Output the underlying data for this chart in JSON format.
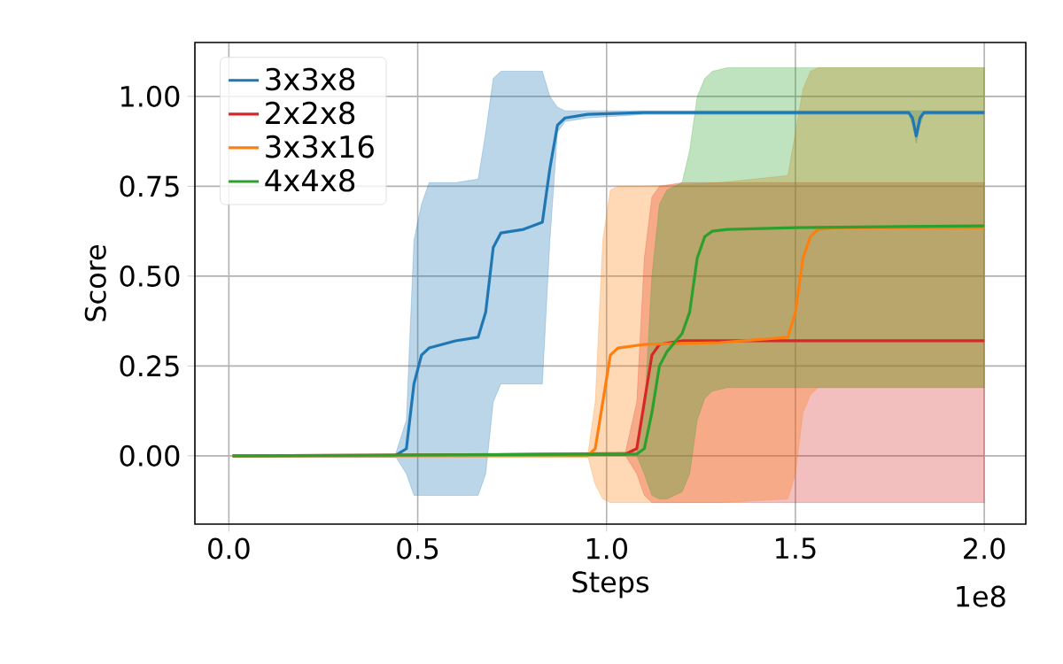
{
  "chart_data": {
    "type": "line",
    "xlabel": "Steps",
    "ylabel": "Score",
    "annotations": [
      "1e8"
    ],
    "xlim": [
      -0.09,
      2.11
    ],
    "ylim": [
      -0.19,
      1.15
    ],
    "xticks": [
      {
        "value": 0,
        "label": "0.0"
      },
      {
        "value": 0.5,
        "label": "0.5"
      },
      {
        "value": 1,
        "label": "1.0"
      },
      {
        "value": 1.5,
        "label": "1.5"
      },
      {
        "value": 2,
        "label": "2.0"
      }
    ],
    "yticks": [
      {
        "value": 0,
        "label": "0.00"
      },
      {
        "value": 0.25,
        "label": "0.25"
      },
      {
        "value": 0.5,
        "label": "0.50"
      },
      {
        "value": 0.75,
        "label": "0.75"
      },
      {
        "value": 1,
        "label": "1.00"
      }
    ],
    "grid": true,
    "legend": "top left",
    "series": [
      {
        "name": "3x3x8",
        "color": "#1f77b4",
        "x": [
          0.01,
          0.44,
          0.47,
          0.49,
          0.51,
          0.53,
          0.6,
          0.66,
          0.68,
          0.7,
          0.72,
          0.78,
          0.83,
          0.85,
          0.87,
          0.89,
          0.95,
          1.1,
          1.8,
          1.81,
          1.82,
          1.83,
          1.84,
          2.0
        ],
        "values": [
          0,
          0,
          0.02,
          0.2,
          0.28,
          0.3,
          0.32,
          0.33,
          0.4,
          0.58,
          0.62,
          0.63,
          0.65,
          0.8,
          0.92,
          0.94,
          0.95,
          0.955,
          0.955,
          0.94,
          0.89,
          0.94,
          0.955,
          0.955
        ],
        "lower": [
          0,
          0,
          -0.05,
          -0.11,
          -0.11,
          -0.11,
          -0.11,
          -0.11,
          -0.05,
          0.15,
          0.2,
          0.2,
          0.2,
          0.6,
          0.9,
          0.93,
          0.94,
          0.95,
          0.95,
          0.92,
          0.87,
          0.92,
          0.95,
          0.95
        ],
        "upper": [
          0,
          0,
          0.1,
          0.6,
          0.7,
          0.76,
          0.76,
          0.77,
          0.9,
          1.05,
          1.07,
          1.07,
          1.07,
          1.0,
          0.97,
          0.96,
          0.96,
          0.96,
          0.96,
          0.96,
          0.96,
          0.96,
          0.96,
          0.96
        ]
      },
      {
        "name": "2x2x8",
        "color": "#d62728",
        "x": [
          0.01,
          1.05,
          1.08,
          1.1,
          1.12,
          1.14,
          1.2,
          2.0
        ],
        "values": [
          0,
          0.005,
          0.02,
          0.15,
          0.28,
          0.31,
          0.32,
          0.32
        ],
        "lower": [
          0,
          0,
          -0.05,
          -0.11,
          -0.13,
          -0.13,
          -0.13,
          -0.13
        ],
        "upper": [
          0,
          0.01,
          0.15,
          0.55,
          0.72,
          0.75,
          0.76,
          0.76
        ]
      },
      {
        "name": "3x3x16",
        "color": "#ff7f0e",
        "x": [
          0.01,
          0.95,
          0.97,
          0.99,
          1.01,
          1.03,
          1.1,
          1.3,
          1.48,
          1.5,
          1.52,
          1.54,
          1.56,
          1.6,
          2.0
        ],
        "values": [
          0,
          0,
          0.02,
          0.15,
          0.28,
          0.3,
          0.31,
          0.315,
          0.33,
          0.4,
          0.55,
          0.61,
          0.63,
          0.635,
          0.635
        ],
        "lower": [
          0,
          0,
          -0.08,
          -0.12,
          -0.13,
          -0.13,
          -0.13,
          -0.13,
          -0.12,
          -0.05,
          0.12,
          0.17,
          0.19,
          0.19,
          0.19
        ],
        "upper": [
          0,
          0,
          0.15,
          0.6,
          0.74,
          0.75,
          0.75,
          0.76,
          0.78,
          0.9,
          1.02,
          1.07,
          1.08,
          1.08,
          1.08
        ]
      },
      {
        "name": "4x4x8",
        "color": "#2ca02c",
        "x": [
          0.01,
          1.08,
          1.1,
          1.12,
          1.14,
          1.16,
          1.2,
          1.22,
          1.24,
          1.26,
          1.28,
          1.32,
          1.5,
          2.0
        ],
        "values": [
          0,
          0.005,
          0.02,
          0.12,
          0.25,
          0.29,
          0.34,
          0.4,
          0.55,
          0.61,
          0.625,
          0.63,
          0.635,
          0.64
        ],
        "lower": [
          0,
          0,
          -0.05,
          -0.11,
          -0.12,
          -0.12,
          -0.1,
          -0.05,
          0.1,
          0.16,
          0.18,
          0.19,
          0.19,
          0.19
        ],
        "upper": [
          0,
          0.01,
          0.12,
          0.5,
          0.7,
          0.74,
          0.76,
          0.85,
          1.0,
          1.05,
          1.07,
          1.08,
          1.08,
          1.08
        ]
      }
    ]
  }
}
